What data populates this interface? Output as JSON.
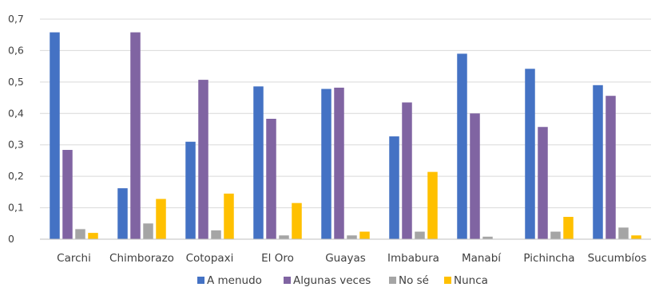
{
  "chart_data": {
    "type": "bar",
    "title": "",
    "xlabel": "",
    "ylabel": "",
    "ylim": [
      0,
      0.7
    ],
    "yticks": [
      "0",
      "0,1",
      "0,2",
      "0,3",
      "0,4",
      "0,5",
      "0,6",
      "0,7"
    ],
    "grid": true,
    "legend_position": "bottom",
    "categories": [
      "Carchi",
      "Chimborazo",
      "Cotopaxi",
      "El Oro",
      "Guayas",
      "Imbabura",
      "Manabí",
      "Pichincha",
      "Sucumbíos"
    ],
    "series": [
      {
        "name": "A menudo",
        "color": "#4472C4",
        "values": [
          0.658,
          0.162,
          0.31,
          0.486,
          0.478,
          0.327,
          0.59,
          0.542,
          0.49
        ]
      },
      {
        "name": "Algunas veces",
        "color": "#8064A2",
        "values": [
          0.284,
          0.658,
          0.507,
          0.383,
          0.482,
          0.435,
          0.4,
          0.357,
          0.456
        ]
      },
      {
        "name": "No sé",
        "color": "#A5A5A5",
        "values": [
          0.032,
          0.05,
          0.028,
          0.012,
          0.012,
          0.024,
          0.008,
          0.024,
          0.037
        ]
      },
      {
        "name": "Nunca",
        "color": "#FFC000",
        "values": [
          0.02,
          0.128,
          0.145,
          0.115,
          0.024,
          0.214,
          0.0,
          0.071,
          0.012
        ]
      }
    ]
  }
}
